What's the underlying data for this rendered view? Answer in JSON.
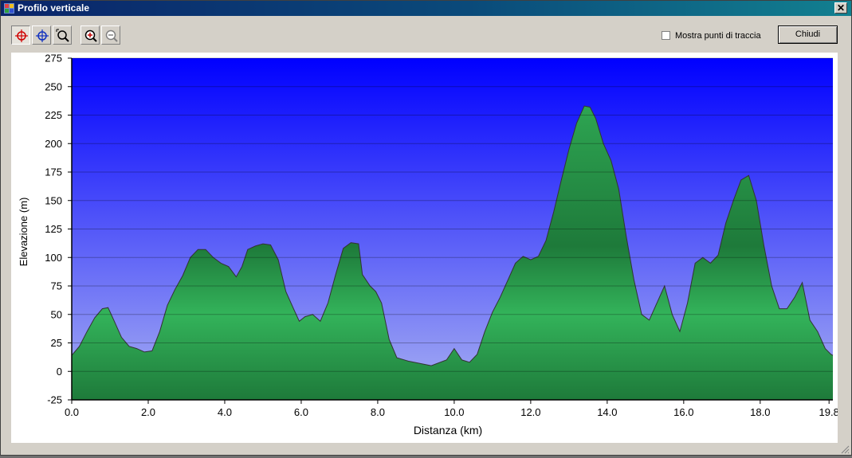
{
  "window": {
    "title": "Profilo verticale",
    "close_glyph": "✕"
  },
  "toolbar": {
    "buttons": [
      {
        "name": "select-point-tool",
        "icon": "crosshair-red-icon",
        "pressed": true
      },
      {
        "name": "pan-tool",
        "icon": "crosshair-blue-icon",
        "pressed": false
      },
      {
        "name": "zoom-window-tool",
        "icon": "zoom-window-icon",
        "pressed": false
      },
      {
        "name": "zoom-in-button",
        "icon": "zoom-in-icon",
        "pressed": false
      },
      {
        "name": "zoom-out-button",
        "icon": "zoom-out-icon",
        "pressed": false
      }
    ],
    "show_track_points_label": "Mostra punti di traccia",
    "show_track_points_checked": false,
    "close_label": "Chiudi"
  },
  "colors": {
    "sky_top": "#0000ff",
    "sky_bottom": "#a8b0f2",
    "fill_light": "#33b35a",
    "fill_dark": "#1e7a3a",
    "outline": "#333333"
  },
  "chart_data": {
    "type": "area",
    "xlabel": "Distanza   (km)",
    "ylabel": "Elevazione  (m)",
    "xlim": [
      0,
      19.9
    ],
    "ylim": [
      -25,
      275
    ],
    "x_ticks": [
      0,
      2,
      4,
      6,
      8,
      10,
      12,
      14,
      16,
      18,
      19.8
    ],
    "x_tick_labels": [
      "0.0",
      "2.0",
      "4.0",
      "6.0",
      "8.0",
      "10.0",
      "12.0",
      "14.0",
      "16.0",
      "18.0",
      "19.8"
    ],
    "y_ticks": [
      -25,
      0,
      25,
      50,
      75,
      100,
      125,
      150,
      175,
      200,
      225,
      250,
      275
    ],
    "grid": true,
    "series": [
      {
        "x": [
          0,
          0.2,
          0.4,
          0.6,
          0.8,
          0.95,
          1.1,
          1.3,
          1.5,
          1.7,
          1.9,
          2.1,
          2.3,
          2.5,
          2.7,
          2.9,
          3.1,
          3.3,
          3.5,
          3.7,
          3.9,
          4.1,
          4.3,
          4.45,
          4.6,
          4.8,
          5.0,
          5.2,
          5.4,
          5.6,
          5.8,
          5.95,
          6.1,
          6.3,
          6.5,
          6.7,
          6.9,
          7.1,
          7.3,
          7.5,
          7.6,
          7.8,
          7.95,
          8.1,
          8.3,
          8.5,
          8.8,
          9.1,
          9.4,
          9.8,
          10.0,
          10.2,
          10.4,
          10.6,
          10.8,
          11.0,
          11.2,
          11.4,
          11.6,
          11.8,
          12.0,
          12.2,
          12.4,
          12.6,
          12.8,
          13.0,
          13.2,
          13.4,
          13.55,
          13.7,
          13.9,
          14.1,
          14.3,
          14.5,
          14.7,
          14.9,
          15.1,
          15.3,
          15.5,
          15.7,
          15.9,
          16.1,
          16.3,
          16.5,
          16.7,
          16.9,
          17.1,
          17.3,
          17.5,
          17.7,
          17.9,
          18.1,
          18.3,
          18.5,
          18.7,
          18.9,
          19.1,
          19.3,
          19.5,
          19.7,
          19.85,
          19.9
        ],
        "y": [
          14,
          22,
          35,
          47,
          55,
          56,
          45,
          30,
          22,
          20,
          17,
          18,
          35,
          58,
          72,
          84,
          100,
          107,
          107,
          100,
          95,
          92,
          83,
          92,
          107,
          110,
          112,
          111,
          98,
          70,
          55,
          44,
          48,
          50,
          44,
          60,
          85,
          108,
          113,
          112,
          85,
          75,
          70,
          60,
          28,
          12,
          9,
          7,
          5,
          10,
          20,
          10,
          8,
          15,
          35,
          52,
          65,
          80,
          95,
          101,
          98,
          101,
          115,
          140,
          168,
          195,
          218,
          233,
          232,
          222,
          200,
          185,
          160,
          118,
          80,
          50,
          45,
          60,
          75,
          50,
          35,
          60,
          95,
          100,
          95,
          102,
          130,
          150,
          168,
          172,
          150,
          110,
          75,
          55,
          55,
          65,
          78,
          45,
          35,
          20,
          15,
          14
        ]
      }
    ]
  }
}
